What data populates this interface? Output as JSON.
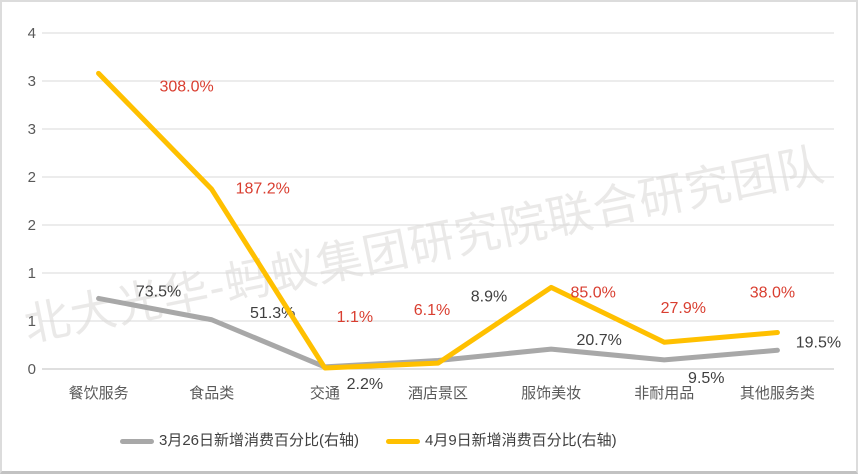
{
  "chart_data": {
    "type": "line",
    "title": "",
    "categories": [
      "餐饮服务",
      "食品类",
      "交通",
      "酒店景区",
      "服饰美妆",
      "非耐用品",
      "其他服务类"
    ],
    "series": [
      {
        "name": "3月26日新增消费百分比(右轴)",
        "color": "#a8a8a8",
        "values_pct": [
          73.5,
          51.3,
          2.2,
          8.9,
          20.7,
          9.5,
          19.5
        ],
        "data_labels": [
          "73.5%",
          "51.3%",
          "2.2%",
          "8.9%",
          "20.7%",
          "9.5%",
          "19.5%"
        ],
        "label_color": "#3f3f3f",
        "label_offsets": [
          [
            60,
            -7
          ],
          [
            61,
            -7
          ],
          [
            40,
            17
          ],
          [
            51,
            -64
          ],
          [
            48,
            -9
          ],
          [
            42,
            18
          ],
          [
            41,
            -8
          ]
        ]
      },
      {
        "name": "4月9日新增消费百分比(右轴)",
        "color": "#ffc000",
        "values_pct": [
          308.0,
          187.2,
          1.1,
          6.1,
          85.0,
          27.9,
          38.0
        ],
        "data_labels": [
          "308.0%",
          "187.2%",
          "1.1%",
          "6.1%",
          "85.0%",
          "27.9%",
          "38.0%"
        ],
        "label_color": "#d93e30",
        "label_offsets": [
          [
            88,
            13
          ],
          [
            51,
            -1
          ],
          [
            30,
            -51
          ],
          [
            -6,
            -53
          ],
          [
            42,
            5
          ],
          [
            19,
            -34
          ],
          [
            -5,
            -40
          ]
        ]
      }
    ],
    "y_axis": {
      "tick_labels_top_to_bottom": [
        "4",
        "3",
        "3",
        "2",
        "2",
        "1",
        "1",
        "0"
      ],
      "label_color": "#595959"
    },
    "x_axis": {
      "label_color": "#595959"
    },
    "right_axis": {
      "visible": false,
      "range_pct": [
        0,
        350
      ],
      "gridline_step_pct": 50
    },
    "legend_position": "bottom",
    "grid": true,
    "gridline_color": "#d9d9d9",
    "axis_line_color": "#bfbfbf",
    "watermark": "北大光华-蚂蚁集团研究院联合研究团队"
  }
}
